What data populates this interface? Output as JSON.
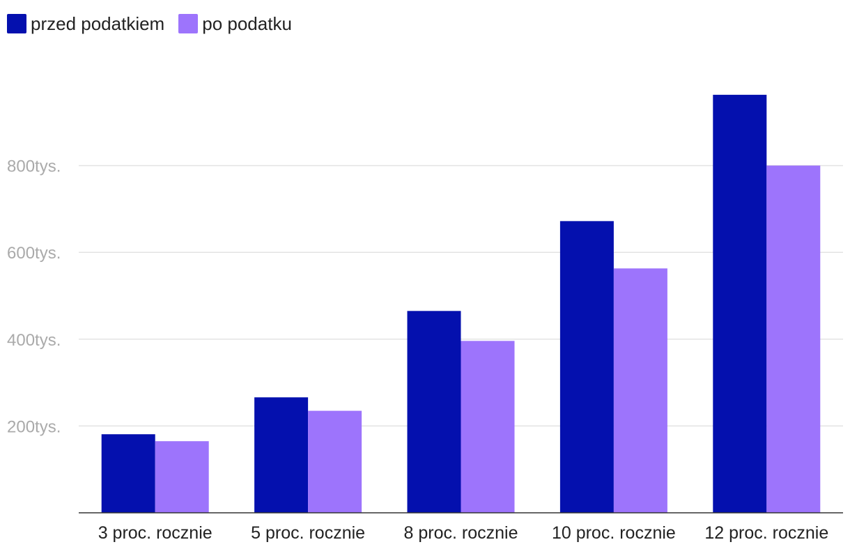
{
  "chart_data": {
    "type": "bar",
    "title": "",
    "xlabel": "",
    "ylabel": "",
    "categories": [
      "3 proc. rocznie",
      "5 proc. rocznie",
      "8 proc. rocznie",
      "10 proc. rocznie",
      "12 proc. rocznie"
    ],
    "series": [
      {
        "name": "przed podatkiem",
        "color": "#0410ae",
        "values": [
          181000,
          266000,
          465000,
          672000,
          963000
        ]
      },
      {
        "name": "po podatku",
        "color": "#9d74fc",
        "values": [
          165000,
          235000,
          396000,
          563000,
          800000
        ]
      }
    ],
    "yticks": [
      {
        "value": 200000,
        "label": "200tys."
      },
      {
        "value": 400000,
        "label": "400tys."
      },
      {
        "value": 600000,
        "label": "600tys."
      },
      {
        "value": 800000,
        "label": "800tys."
      }
    ],
    "ylim": [
      0,
      1000000
    ],
    "grid": true,
    "legend_position": "top-left"
  }
}
